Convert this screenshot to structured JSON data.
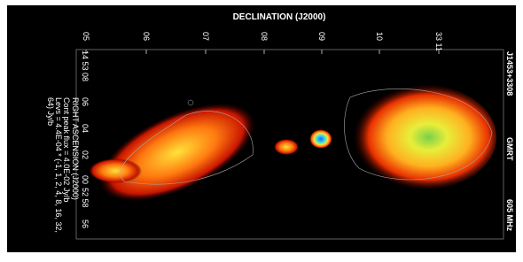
{
  "header": {
    "title": "DECLINATION (J2000)"
  },
  "top_ticks": [
    "05",
    "06",
    "07",
    "08",
    "09",
    "10",
    "33 11"
  ],
  "left_ticks": [
    "14 53 08",
    "06",
    "04",
    "02",
    "00",
    "52 58",
    "56"
  ],
  "notes": [
    "RIGHT ASCENSION (J2000)",
    "Cont peak flux = 4.0E-02 Jy/b",
    "Levs = 4.4E-04 * (-1, 1, 2, 4, 8, 16, 32,",
    "64) Jy/b"
  ],
  "right_labels": [
    "J1453+3308",
    "GMRT",
    "605 MHz"
  ]
}
